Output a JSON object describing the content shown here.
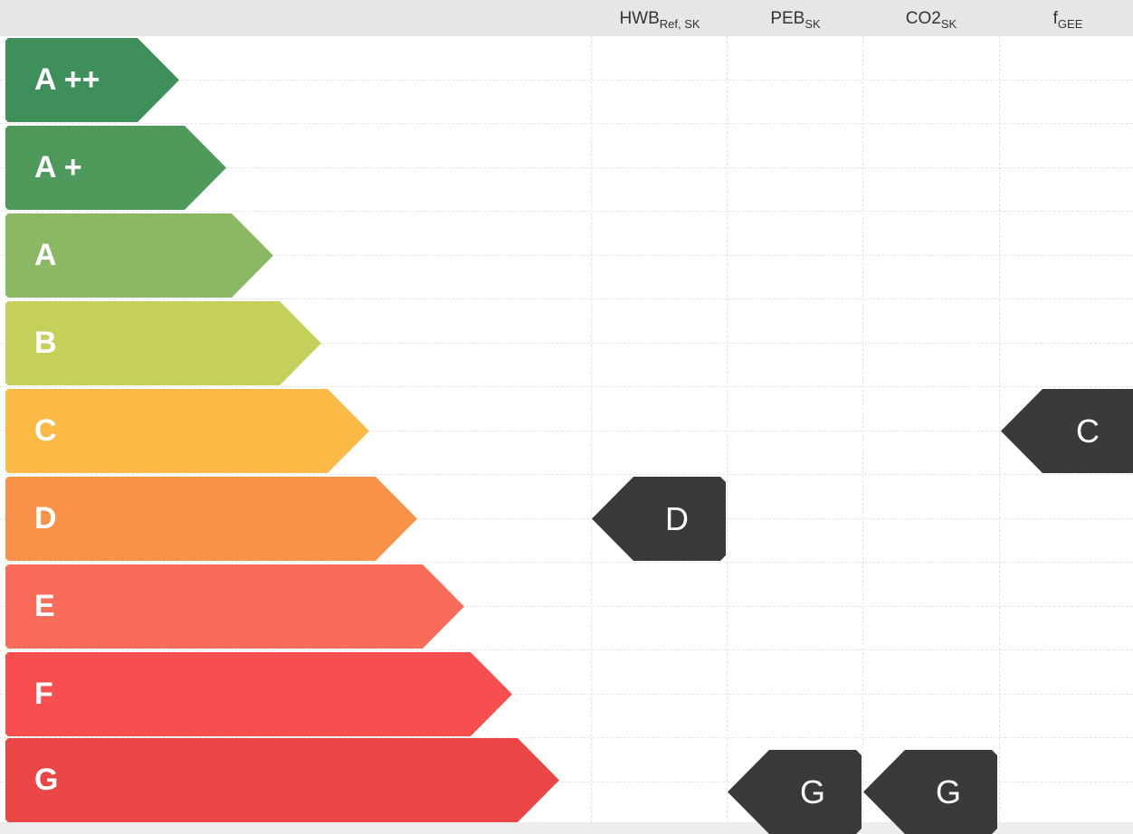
{
  "columns": [
    {
      "id": "hwb",
      "base": "HWB",
      "sub": "Ref, SK"
    },
    {
      "id": "peb",
      "base": "PEB",
      "sub": "SK"
    },
    {
      "id": "co2",
      "base": "CO2",
      "sub": "SK"
    },
    {
      "id": "fgee",
      "base": "f",
      "sub": "GEE"
    }
  ],
  "classes": [
    {
      "label": "A ++",
      "color": "#3f8f5a"
    },
    {
      "label": "A +",
      "color": "#4e9a5a"
    },
    {
      "label": "A",
      "color": "#8bb862"
    },
    {
      "label": "B",
      "color": "#c4d05a"
    },
    {
      "label": "C",
      "color": "#fbb946"
    },
    {
      "label": "D",
      "color": "#f79248"
    },
    {
      "label": "E",
      "color": "#f96c5a"
    },
    {
      "label": "F",
      "color": "#f74f4f"
    },
    {
      "label": "G",
      "color": "#eb4646"
    }
  ],
  "ratings": {
    "hwb": "D",
    "peb": "G",
    "co2": "G",
    "fgee": "C"
  },
  "marker_color": "#3a3a3a"
}
